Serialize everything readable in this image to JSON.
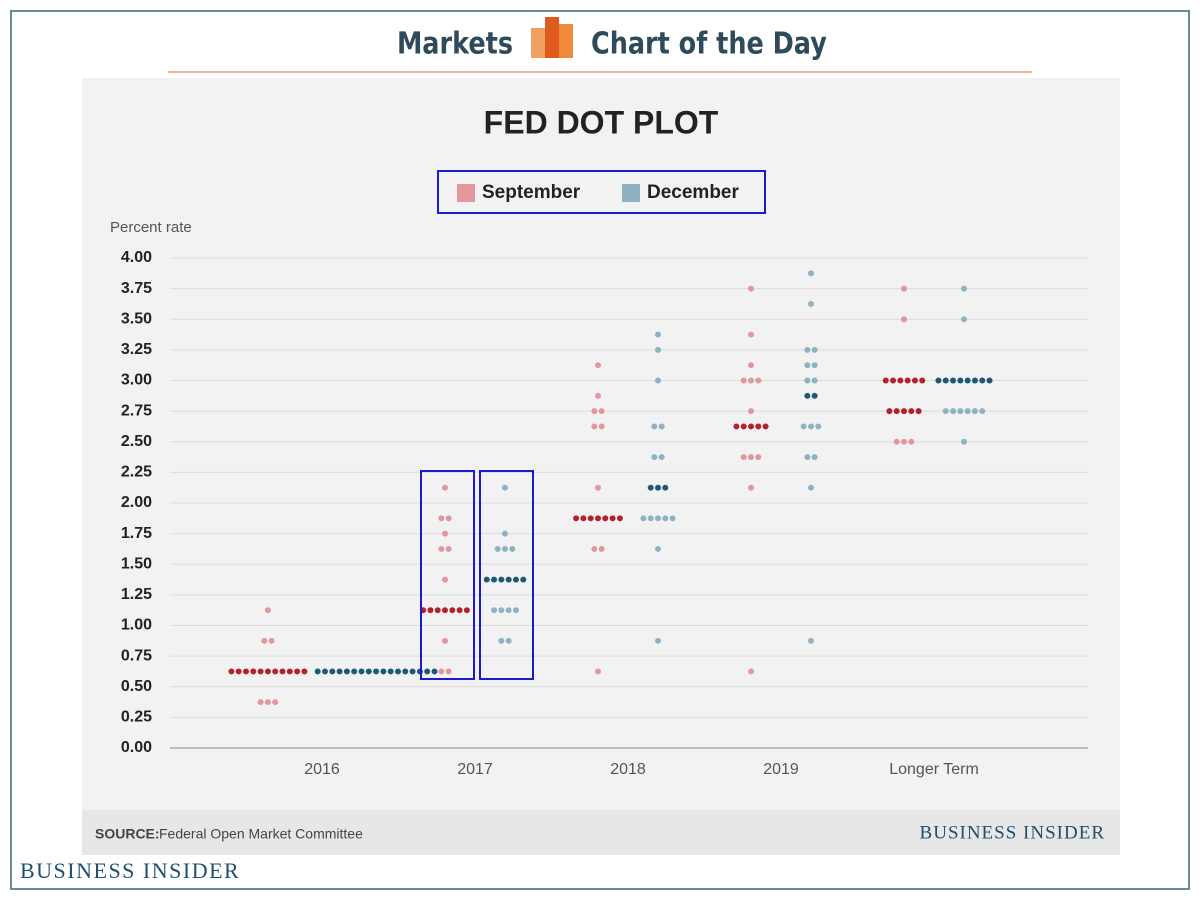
{
  "header": {
    "left": "Markets",
    "right": "Chart of the Day"
  },
  "chart_data": {
    "type": "dot",
    "title": "FED DOT PLOT",
    "y_label": "Percent rate",
    "categories": [
      "2016",
      "2017",
      "2018",
      "2019",
      "Longer Term"
    ],
    "ylim": [
      0,
      4
    ],
    "yticks": [
      {
        "value": 0,
        "label": "0.00"
      },
      {
        "value": 0.25,
        "label": "0.25"
      },
      {
        "value": 0.5,
        "label": "0.50"
      },
      {
        "value": 0.75,
        "label": "0.75"
      },
      {
        "value": 1,
        "label": "1.00"
      },
      {
        "value": 1.25,
        "label": "1.25"
      },
      {
        "value": 1.5,
        "label": "1.50"
      },
      {
        "value": 1.75,
        "label": "1.75"
      },
      {
        "value": 2,
        "label": "2.00"
      },
      {
        "value": 2.25,
        "label": "2.25"
      },
      {
        "value": 2.5,
        "label": "2.50"
      },
      {
        "value": 2.75,
        "label": "2.75"
      },
      {
        "value": 3,
        "label": "3.00"
      },
      {
        "value": 3.25,
        "label": "3.25"
      },
      {
        "value": 3.5,
        "label": "3.50"
      },
      {
        "value": 3.75,
        "label": "3.75"
      },
      {
        "value": 4,
        "label": "4.00"
      }
    ],
    "grid": true,
    "series": [
      {
        "name": "September",
        "color": "#e3979c",
        "median_color": "#b5202d",
        "points": [
          [
            {
              "rate": 1.125,
              "count": 1
            },
            {
              "rate": 0.875,
              "count": 2
            },
            {
              "rate": 0.625,
              "count": 11,
              "median": true
            },
            {
              "rate": 0.375,
              "count": 3
            }
          ],
          [
            {
              "rate": 2.125,
              "count": 1
            },
            {
              "rate": 1.875,
              "count": 2
            },
            {
              "rate": 1.75,
              "count": 1
            },
            {
              "rate": 1.625,
              "count": 2
            },
            {
              "rate": 1.375,
              "count": 1
            },
            {
              "rate": 1.125,
              "count": 7,
              "median": true
            },
            {
              "rate": 0.875,
              "count": 1
            },
            {
              "rate": 0.625,
              "count": 2
            }
          ],
          [
            {
              "rate": 3.125,
              "count": 1
            },
            {
              "rate": 2.875,
              "count": 1
            },
            {
              "rate": 2.75,
              "count": 2
            },
            {
              "rate": 2.625,
              "count": 2
            },
            {
              "rate": 2.125,
              "count": 1
            },
            {
              "rate": 1.875,
              "count": 7,
              "median": true
            },
            {
              "rate": 1.625,
              "count": 2
            },
            {
              "rate": 0.625,
              "count": 1
            }
          ],
          [
            {
              "rate": 3.75,
              "count": 1
            },
            {
              "rate": 3.375,
              "count": 1
            },
            {
              "rate": 3.125,
              "count": 1
            },
            {
              "rate": 3,
              "count": 3
            },
            {
              "rate": 2.75,
              "count": 1
            },
            {
              "rate": 2.625,
              "count": 5,
              "median": true
            },
            {
              "rate": 2.375,
              "count": 3
            },
            {
              "rate": 2.125,
              "count": 1
            },
            {
              "rate": 0.625,
              "count": 1
            }
          ],
          [
            {
              "rate": 3.75,
              "count": 1
            },
            {
              "rate": 3.5,
              "count": 1
            },
            {
              "rate": 3,
              "count": 6,
              "median": true
            },
            {
              "rate": 2.75,
              "count": 5,
              "median": true
            },
            {
              "rate": 2.5,
              "count": 3
            }
          ]
        ]
      },
      {
        "name": "December",
        "color": "#8fb2c3",
        "median_color": "#1d5876",
        "points": [
          [
            {
              "rate": 0.625,
              "count": 17,
              "median": true
            }
          ],
          [
            {
              "rate": 2.125,
              "count": 1
            },
            {
              "rate": 1.75,
              "count": 1
            },
            {
              "rate": 1.625,
              "count": 3
            },
            {
              "rate": 1.375,
              "count": 6,
              "median": true
            },
            {
              "rate": 1.125,
              "count": 4
            },
            {
              "rate": 0.875,
              "count": 2
            }
          ],
          [
            {
              "rate": 3.375,
              "count": 1
            },
            {
              "rate": 3.25,
              "count": 1
            },
            {
              "rate": 3,
              "count": 1
            },
            {
              "rate": 2.625,
              "count": 2
            },
            {
              "rate": 2.375,
              "count": 2
            },
            {
              "rate": 2.125,
              "count": 3,
              "median": true
            },
            {
              "rate": 1.875,
              "count": 5
            },
            {
              "rate": 1.625,
              "count": 1
            },
            {
              "rate": 0.875,
              "count": 1
            }
          ],
          [
            {
              "rate": 3.875,
              "count": 1
            },
            {
              "rate": 3.625,
              "count": 1
            },
            {
              "rate": 3.25,
              "count": 2
            },
            {
              "rate": 3.125,
              "count": 2
            },
            {
              "rate": 3,
              "count": 2
            },
            {
              "rate": 2.875,
              "count": 2,
              "median": true
            },
            {
              "rate": 2.625,
              "count": 3
            },
            {
              "rate": 2.375,
              "count": 2
            },
            {
              "rate": 2.125,
              "count": 1
            },
            {
              "rate": 0.875,
              "count": 1
            }
          ],
          [
            {
              "rate": 3.75,
              "count": 1
            },
            {
              "rate": 3.5,
              "count": 1
            },
            {
              "rate": 3,
              "count": 8,
              "median": true
            },
            {
              "rate": 2.75,
              "count": 6
            },
            {
              "rate": 2.5,
              "count": 1
            }
          ]
        ]
      }
    ],
    "source_label": "SOURCE:",
    "source": "Federal Open Market Committee",
    "brand": "BUSINESS INSIDER"
  },
  "footer": {
    "brand": "BUSINESS INSIDER"
  }
}
